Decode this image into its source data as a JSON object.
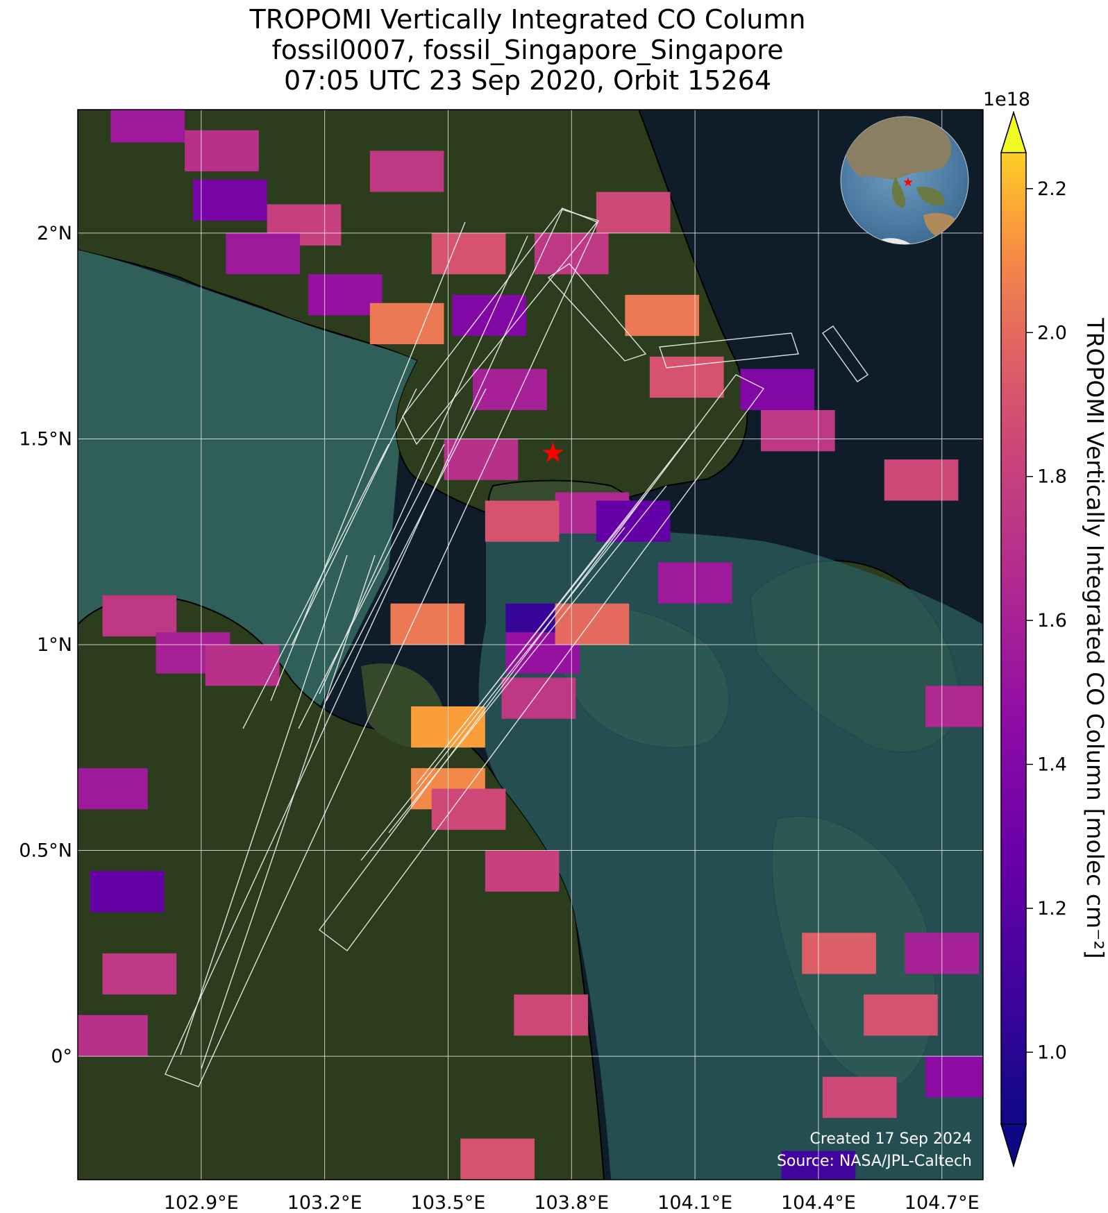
{
  "title": {
    "line1": "TROPOMI Vertically Integrated CO Column",
    "line2": "fossil0007, fossil_Singapore_Singapore",
    "line3": "07:05 UTC 23 Sep 2020, Orbit 15264"
  },
  "map": {
    "lon_range": [
      102.6,
      104.8
    ],
    "lat_range": [
      -0.3,
      2.3
    ],
    "lon_ticks": [
      {
        "value": 102.9,
        "label": "102.9°E"
      },
      {
        "value": 103.2,
        "label": "103.2°E"
      },
      {
        "value": 103.5,
        "label": "103.5°E"
      },
      {
        "value": 103.8,
        "label": "103.8°E"
      },
      {
        "value": 104.1,
        "label": "104.1°E"
      },
      {
        "value": 104.4,
        "label": "104.4°E"
      },
      {
        "value": 104.7,
        "label": "104.7°E"
      }
    ],
    "lat_ticks": [
      {
        "value": 0.0,
        "label": "0°"
      },
      {
        "value": 0.5,
        "label": "0.5°N"
      },
      {
        "value": 1.0,
        "label": "1°N"
      },
      {
        "value": 1.5,
        "label": "1.5°N"
      },
      {
        "value": 2.0,
        "label": "2°N"
      }
    ],
    "grid": true,
    "site_marker": {
      "lon": 103.755,
      "lat": 1.465,
      "symbol": "star",
      "color": "#ff0000"
    },
    "colors": {
      "sea": "#0f1d2b",
      "land": "#2b3d1c",
      "water_shallow": "#2f5f58",
      "gridline": "#ffffff"
    },
    "inset_globe": {
      "placement": "top-right",
      "marker_color": "#ff0000"
    },
    "credits": {
      "created": "Created 17 Sep 2024",
      "source": "Source: NASA/JPL-Caltech"
    }
  },
  "colorbar": {
    "label": "TROPOMI Vertically Integrated CO Column [molec cm⁻²]",
    "multiplier": "1e18",
    "range": [
      0.9,
      2.25
    ],
    "ticks": [
      {
        "value": 1.0,
        "label": "1.0"
      },
      {
        "value": 1.2,
        "label": "1.2"
      },
      {
        "value": 1.4,
        "label": "1.4"
      },
      {
        "value": 1.6,
        "label": "1.6"
      },
      {
        "value": 1.8,
        "label": "1.8"
      },
      {
        "value": 2.0,
        "label": "2.0"
      },
      {
        "value": 2.2,
        "label": "2.2"
      }
    ],
    "colormap": "plasma",
    "extend": "both"
  },
  "chart_data": {
    "type": "heatmap",
    "units": "molec cm⁻² (×1e18)",
    "pixels": [
      {
        "lon": 102.77,
        "lat": 2.27,
        "value": 1.55
      },
      {
        "lon": 102.95,
        "lat": 2.2,
        "value": 1.7
      },
      {
        "lon": 102.97,
        "lat": 2.08,
        "value": 1.35
      },
      {
        "lon": 103.15,
        "lat": 2.02,
        "value": 1.8
      },
      {
        "lon": 103.05,
        "lat": 1.95,
        "value": 1.55
      },
      {
        "lon": 103.25,
        "lat": 1.85,
        "value": 1.5
      },
      {
        "lon": 103.4,
        "lat": 1.78,
        "value": 2.05
      },
      {
        "lon": 103.55,
        "lat": 1.95,
        "value": 1.9
      },
      {
        "lon": 103.6,
        "lat": 1.8,
        "value": 1.4
      },
      {
        "lon": 103.4,
        "lat": 2.15,
        "value": 1.75
      },
      {
        "lon": 103.65,
        "lat": 1.62,
        "value": 1.6
      },
      {
        "lon": 103.58,
        "lat": 1.45,
        "value": 1.7
      },
      {
        "lon": 103.8,
        "lat": 1.95,
        "value": 1.75
      },
      {
        "lon": 103.95,
        "lat": 2.05,
        "value": 1.85
      },
      {
        "lon": 104.02,
        "lat": 1.8,
        "value": 2.05
      },
      {
        "lon": 104.08,
        "lat": 1.65,
        "value": 1.9
      },
      {
        "lon": 104.3,
        "lat": 1.62,
        "value": 1.4
      },
      {
        "lon": 104.35,
        "lat": 1.52,
        "value": 1.75
      },
      {
        "lon": 104.65,
        "lat": 1.4,
        "value": 1.85
      },
      {
        "lon": 103.85,
        "lat": 1.32,
        "value": 1.65
      },
      {
        "lon": 103.95,
        "lat": 1.3,
        "value": 1.25
      },
      {
        "lon": 103.68,
        "lat": 1.3,
        "value": 1.9
      },
      {
        "lon": 103.45,
        "lat": 1.05,
        "value": 2.05
      },
      {
        "lon": 103.73,
        "lat": 1.05,
        "value": 1.05
      },
      {
        "lon": 103.73,
        "lat": 0.98,
        "value": 1.5
      },
      {
        "lon": 103.85,
        "lat": 1.05,
        "value": 2.0
      },
      {
        "lon": 104.1,
        "lat": 1.15,
        "value": 1.55
      },
      {
        "lon": 103.72,
        "lat": 0.87,
        "value": 1.75
      },
      {
        "lon": 103.5,
        "lat": 0.8,
        "value": 2.15
      },
      {
        "lon": 103.5,
        "lat": 0.65,
        "value": 2.1
      },
      {
        "lon": 103.55,
        "lat": 0.6,
        "value": 1.85
      },
      {
        "lon": 103.68,
        "lat": 0.45,
        "value": 1.8
      },
      {
        "lon": 103.75,
        "lat": 0.1,
        "value": 1.85
      },
      {
        "lon": 102.75,
        "lat": 1.07,
        "value": 1.75
      },
      {
        "lon": 102.88,
        "lat": 0.98,
        "value": 1.6
      },
      {
        "lon": 103.0,
        "lat": 0.95,
        "value": 1.7
      },
      {
        "lon": 102.68,
        "lat": 0.65,
        "value": 1.55
      },
      {
        "lon": 102.72,
        "lat": 0.4,
        "value": 1.25
      },
      {
        "lon": 102.75,
        "lat": 0.2,
        "value": 1.75
      },
      {
        "lon": 102.68,
        "lat": 0.05,
        "value": 1.7
      },
      {
        "lon": 104.75,
        "lat": 0.85,
        "value": 1.65
      },
      {
        "lon": 104.45,
        "lat": 0.25,
        "value": 1.95
      },
      {
        "lon": 104.6,
        "lat": 0.1,
        "value": 1.9
      },
      {
        "lon": 104.7,
        "lat": 0.25,
        "value": 1.6
      },
      {
        "lon": 104.5,
        "lat": -0.1,
        "value": 1.85
      },
      {
        "lon": 104.75,
        "lat": -0.05,
        "value": 1.45
      },
      {
        "lon": 103.62,
        "lat": -0.25,
        "value": 1.9
      },
      {
        "lon": 104.4,
        "lat": -0.28,
        "value": 1.1
      }
    ]
  }
}
